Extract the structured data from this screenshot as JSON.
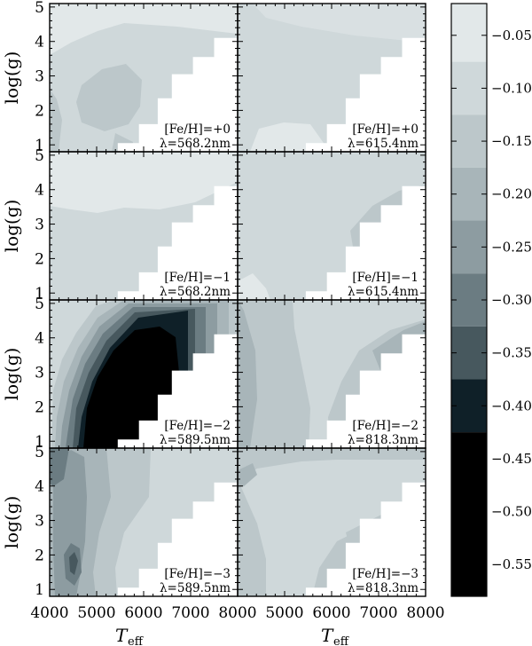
{
  "chart_data": {
    "type": "heatmap",
    "layout": "4x2 grid of contour panels with shared colorbar",
    "xlabel_main": "T",
    "xlabel_sub": "eff",
    "ylabel": "log(g)",
    "xlim": [
      4000,
      8000
    ],
    "ylim": [
      0.8,
      5.1
    ],
    "xticks": [
      4000,
      5000,
      6000,
      7000,
      8000
    ],
    "yticks": [
      1,
      2,
      3,
      4,
      5
    ],
    "colorbar": {
      "levels": [
        -0.05,
        -0.1,
        -0.15,
        -0.2,
        -0.25,
        -0.3,
        -0.35,
        -0.4,
        -0.45,
        -0.5,
        -0.55
      ],
      "range": [
        -0.58,
        -0.02
      ],
      "colors": [
        "#e2e8e9",
        "#cfd8da",
        "#bcc7ca",
        "#a8b5b9",
        "#8d9ca1",
        "#6b7c82",
        "#47585e",
        "#0f2028",
        "#000000"
      ]
    },
    "panels": [
      {
        "row": 0,
        "col": 0,
        "feh": "[Fe/H]=+0",
        "wave": "λ=568.2nm"
      },
      {
        "row": 0,
        "col": 1,
        "feh": "[Fe/H]=+0",
        "wave": "λ=615.4nm"
      },
      {
        "row": 1,
        "col": 0,
        "feh": "[Fe/H]=−1",
        "wave": "λ=568.2nm"
      },
      {
        "row": 1,
        "col": 1,
        "feh": "[Fe/H]=−1",
        "wave": "λ=615.4nm"
      },
      {
        "row": 2,
        "col": 0,
        "feh": "[Fe/H]=−2",
        "wave": "λ=589.5nm"
      },
      {
        "row": 2,
        "col": 1,
        "feh": "[Fe/H]=−2",
        "wave": "λ=818.3nm"
      },
      {
        "row": 3,
        "col": 0,
        "feh": "[Fe/H]=−3",
        "wave": "λ=589.5nm"
      },
      {
        "row": 3,
        "col": 1,
        "feh": "[Fe/H]=−3",
        "wave": "λ=818.3nm"
      }
    ]
  }
}
